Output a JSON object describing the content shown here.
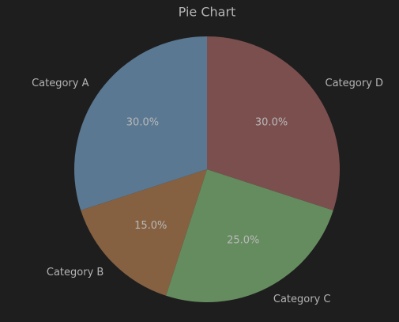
{
  "chart_data": {
    "type": "pie",
    "title": "Pie Chart",
    "categories": [
      "Category A",
      "Category B",
      "Category C",
      "Category D"
    ],
    "values": [
      30,
      15,
      25,
      30
    ],
    "value_labels": [
      "30.0%",
      "15.0%",
      "25.0%",
      "30.0%"
    ],
    "colors": [
      "#5a7892",
      "#866141",
      "#658c5f",
      "#7c4f4f"
    ]
  }
}
